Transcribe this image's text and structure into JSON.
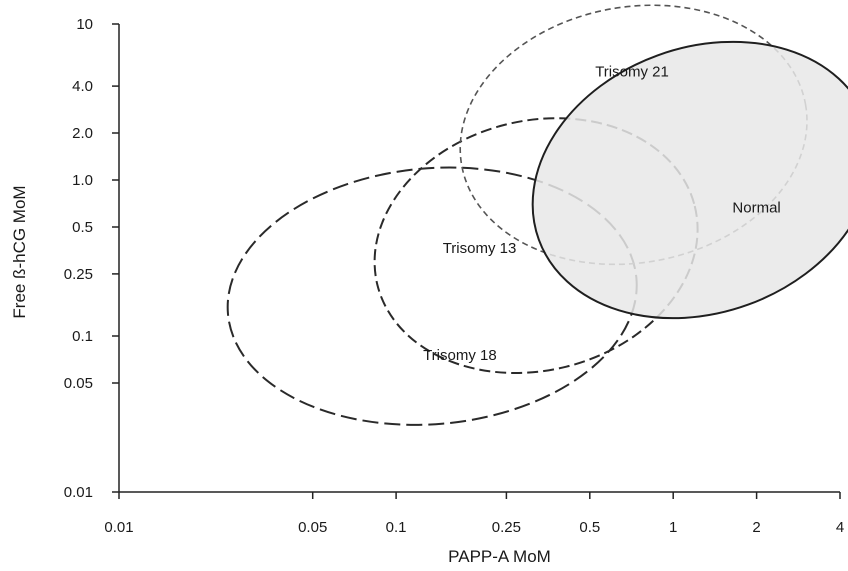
{
  "chart_data": {
    "type": "scatter",
    "title": "",
    "xlabel": "PAPP-A MoM",
    "ylabel": "Free ß-hCG MoM",
    "x_scale": "log",
    "y_scale": "log",
    "xlim": [
      0.01,
      4
    ],
    "ylim": [
      0.01,
      10
    ],
    "x_ticks": [
      {
        "value": 0.01,
        "label": "0.01"
      },
      {
        "value": 0.05,
        "label": "0.05"
      },
      {
        "value": 0.1,
        "label": "0.1"
      },
      {
        "value": 0.25,
        "label": "0.25"
      },
      {
        "value": 0.5,
        "label": "0.5"
      },
      {
        "value": 1,
        "label": "1"
      },
      {
        "value": 2,
        "label": "2"
      },
      {
        "value": 4,
        "label": "4"
      }
    ],
    "y_ticks": [
      {
        "value": 0.01,
        "label": "0.01"
      },
      {
        "value": 0.05,
        "label": "0.05"
      },
      {
        "value": 0.1,
        "label": "0.1"
      },
      {
        "value": 0.25,
        "label": "0.25"
      },
      {
        "value": 0.5,
        "label": "0.5"
      },
      {
        "value": 1,
        "label": "1.0"
      },
      {
        "value": 2,
        "label": "2.0"
      },
      {
        "value": 4,
        "label": "4.0"
      },
      {
        "value": 10,
        "label": "10"
      }
    ],
    "grid": false,
    "regions": [
      {
        "name": "Trisomy 18",
        "center": [
          0.135,
          0.18
        ],
        "semi_axes_decades": [
          0.74,
          0.82
        ],
        "rotation_deg": -5,
        "line_style": "long-dash",
        "fill": "none",
        "label_at": [
          0.17,
          0.07
        ]
      },
      {
        "name": "Trisomy 13",
        "center": [
          0.32,
          0.38
        ],
        "semi_axes_decades": [
          0.59,
          0.8
        ],
        "rotation_deg": -14,
        "line_style": "dash",
        "fill": "none",
        "label_at": [
          0.2,
          0.34
        ]
      },
      {
        "name": "Trisomy 21",
        "center": [
          0.72,
          1.95
        ],
        "semi_axes_decades": [
          0.63,
          0.82
        ],
        "rotation_deg": -10,
        "line_style": "short-dash",
        "fill": "none",
        "label_at": [
          0.71,
          4.6
        ]
      },
      {
        "name": "Normal",
        "center": [
          1.28,
          1.0
        ],
        "semi_axes_decades": [
          0.63,
          0.85
        ],
        "rotation_deg": -20,
        "line_style": "solid",
        "fill": "#e8e8e8",
        "label_at": [
          2.0,
          0.62
        ]
      }
    ]
  }
}
